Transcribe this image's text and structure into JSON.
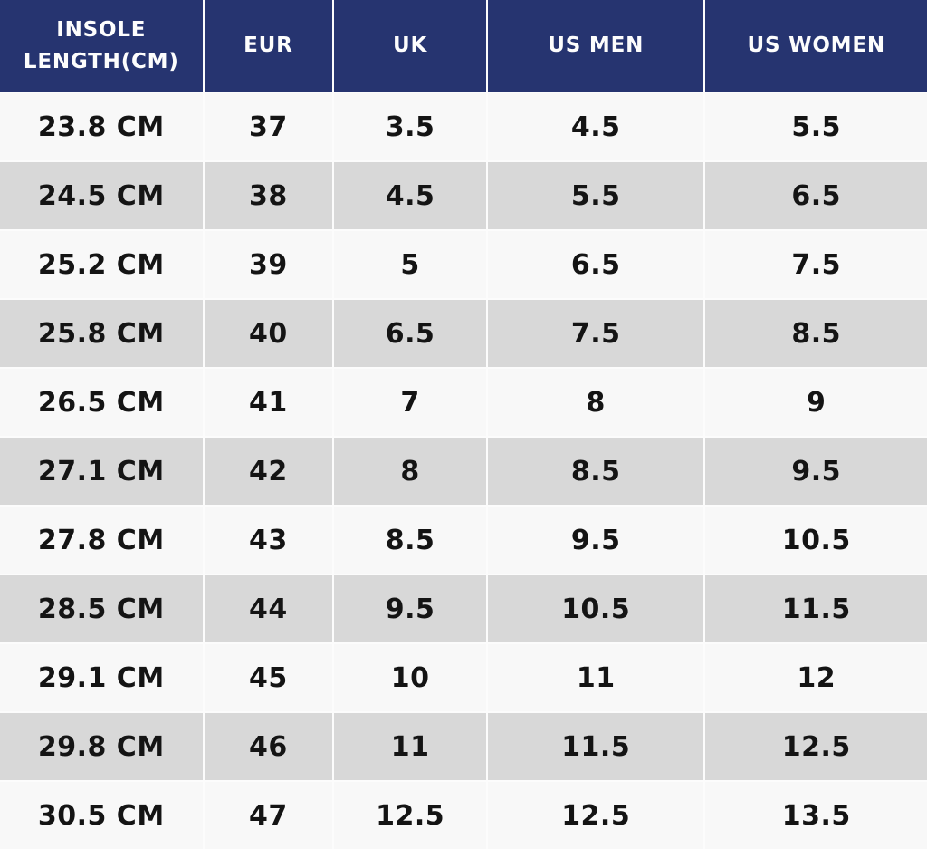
{
  "colors": {
    "header_bg": "#263470",
    "header_text": "#fdfdfd",
    "row_odd_bg": "#f8f8f8",
    "row_even_bg": "#d8d8d8",
    "body_text": "#141414",
    "divider": "#fcfcfc"
  },
  "chart_data": {
    "type": "table",
    "columns": [
      "INSOLE LENGTH(CM)",
      "EUR",
      "UK",
      "US MEN",
      "US WOMEN"
    ],
    "rows": [
      [
        "23.8 CM",
        "37",
        "3.5",
        "4.5",
        "5.5"
      ],
      [
        "24.5 CM",
        "38",
        "4.5",
        "5.5",
        "6.5"
      ],
      [
        "25.2 CM",
        "39",
        "5",
        "6.5",
        "7.5"
      ],
      [
        "25.8 CM",
        "40",
        "6.5",
        "7.5",
        "8.5"
      ],
      [
        "26.5 CM",
        "41",
        "7",
        "8",
        "9"
      ],
      [
        "27.1 CM",
        "42",
        "8",
        "8.5",
        "9.5"
      ],
      [
        "27.8 CM",
        "43",
        "8.5",
        "9.5",
        "10.5"
      ],
      [
        "28.5 CM",
        "44",
        "9.5",
        "10.5",
        "11.5"
      ],
      [
        "29.1 CM",
        "45",
        "10",
        "11",
        "12"
      ],
      [
        "29.8 CM",
        "46",
        "11",
        "11.5",
        "12.5"
      ],
      [
        "30.5 CM",
        "47",
        "12.5",
        "12.5",
        "13.5"
      ]
    ]
  }
}
